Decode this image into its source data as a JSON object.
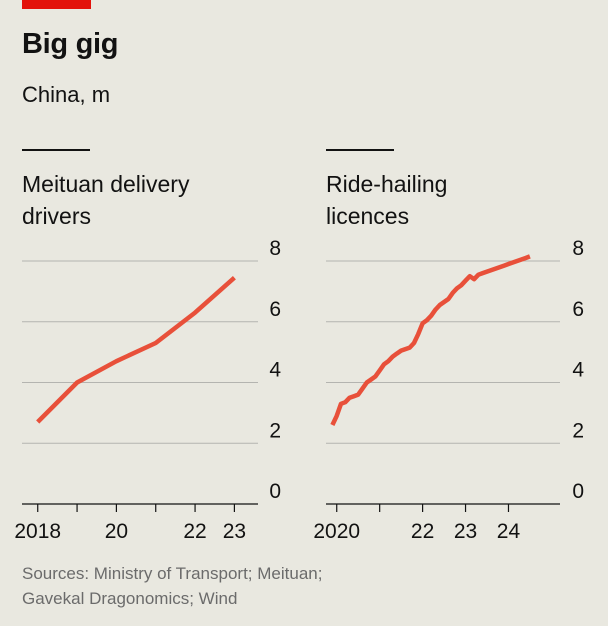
{
  "header": {
    "title": "Big gig",
    "subtitle": "China, m"
  },
  "footer": {
    "source_line1": "Sources: Ministry of Transport; Meituan;",
    "source_line2": "Gavekal Dragonomics; Wind"
  },
  "colors": {
    "background": "#e9e8e0",
    "line": "#e8503a",
    "brand_red": "#e3120b",
    "grid": "#b4b4b0",
    "axis": "#121212",
    "muted_text": "#6b6b6b"
  },
  "chart_data": [
    {
      "type": "line",
      "title_line1": "Meituan delivery",
      "title_line2": "drivers",
      "x_axis": "year",
      "xlim": [
        2017.6,
        2023.6
      ],
      "ylim": [
        0,
        8
      ],
      "yticks": [
        0,
        2,
        4,
        6,
        8
      ],
      "ytick_labels": [
        "0",
        "2",
        "4",
        "6",
        "8"
      ],
      "xtick_positions": [
        2018,
        2020,
        2022,
        2023
      ],
      "xtick_labels": [
        "2018",
        "20",
        "22",
        "23"
      ],
      "xtick_marks": [
        2018,
        2019,
        2020,
        2021,
        2022,
        2023
      ],
      "grid": true,
      "series": [
        {
          "x": [
            2018,
            2019,
            2020,
            2021,
            2022,
            2023
          ],
          "y": [
            2.7,
            4.0,
            4.7,
            5.3,
            6.3,
            7.45
          ]
        }
      ]
    },
    {
      "type": "line",
      "title_line1": "Ride-hailing",
      "title_line2": "licences",
      "x_axis": "year",
      "xlim": [
        2019.75,
        2025.2
      ],
      "ylim": [
        0,
        8
      ],
      "yticks": [
        0,
        2,
        4,
        6,
        8
      ],
      "ytick_labels": [
        "0",
        "2",
        "4",
        "6",
        "8"
      ],
      "xtick_positions": [
        2020,
        2022,
        2023,
        2024
      ],
      "xtick_labels": [
        "2020",
        "22",
        "23",
        "24"
      ],
      "xtick_marks": [
        2020,
        2021,
        2022,
        2023,
        2024
      ],
      "grid": true,
      "series": [
        {
          "x": [
            2019.9,
            2020.0,
            2020.1,
            2020.2,
            2020.3,
            2020.4,
            2020.5,
            2020.6,
            2020.7,
            2020.8,
            2020.9,
            2021.0,
            2021.1,
            2021.2,
            2021.3,
            2021.4,
            2021.5,
            2021.6,
            2021.7,
            2021.8,
            2021.9,
            2022.0,
            2022.1,
            2022.2,
            2022.3,
            2022.4,
            2022.5,
            2022.6,
            2022.7,
            2022.8,
            2022.9,
            2023.0,
            2023.1,
            2023.2,
            2023.3,
            2023.4,
            2023.5,
            2023.6,
            2023.7,
            2023.8,
            2023.9,
            2024.0,
            2024.1,
            2024.2,
            2024.3,
            2024.4,
            2024.5
          ],
          "y": [
            2.6,
            2.9,
            3.3,
            3.35,
            3.5,
            3.55,
            3.6,
            3.8,
            4.0,
            4.1,
            4.2,
            4.4,
            4.6,
            4.7,
            4.85,
            4.95,
            5.05,
            5.1,
            5.15,
            5.3,
            5.6,
            5.95,
            6.05,
            6.2,
            6.4,
            6.55,
            6.65,
            6.75,
            6.95,
            7.1,
            7.2,
            7.35,
            7.5,
            7.4,
            7.55,
            7.6,
            7.65,
            7.7,
            7.75,
            7.8,
            7.85,
            7.9,
            7.95,
            8.0,
            8.05,
            8.1,
            8.15
          ]
        }
      ]
    }
  ]
}
